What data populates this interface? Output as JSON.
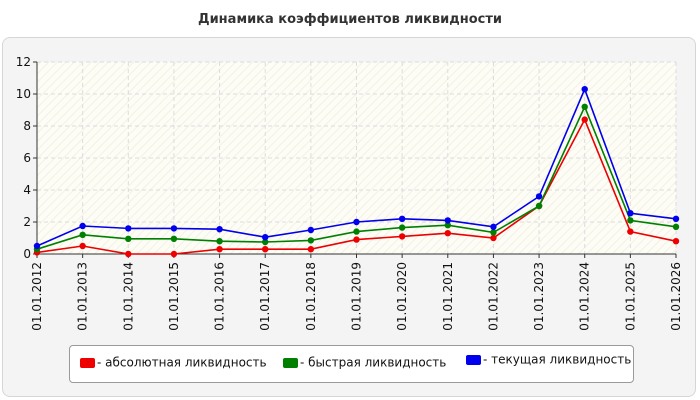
{
  "chart_data": {
    "type": "line",
    "title": "Динамика коэффициентов ликвидности",
    "xlabel": "",
    "ylabel": "",
    "x": [
      "01.01.2012",
      "01.01.2013",
      "01.01.2014",
      "01.01.2015",
      "01.01.2016",
      "01.01.2017",
      "01.01.2018",
      "01.01.2019",
      "01.01.2020",
      "01.01.2021",
      "01.01.2022",
      "01.01.2023",
      "01.01.2024",
      "01.01.2025",
      "01.01.2026"
    ],
    "ylim": [
      0,
      12
    ],
    "yticks": [
      0,
      2,
      4,
      6,
      8,
      10,
      12
    ],
    "grid": true,
    "legend_position": "bottom",
    "series": [
      {
        "name": "- абсолютная ликвидность",
        "color": "#ee0000",
        "values": [
          0.1,
          0.5,
          0.0,
          0.0,
          0.3,
          0.3,
          0.3,
          0.9,
          1.1,
          1.3,
          1.0,
          3.0,
          8.4,
          1.4,
          0.8
        ]
      },
      {
        "name": "- быстрая ликвидность",
        "color": "#008000",
        "values": [
          0.3,
          1.2,
          0.95,
          0.95,
          0.8,
          0.75,
          0.85,
          1.4,
          1.65,
          1.8,
          1.35,
          3.0,
          9.2,
          2.1,
          1.7
        ]
      },
      {
        "name": "- текущая ликвидность",
        "color": "#0000ee",
        "values": [
          0.5,
          1.75,
          1.6,
          1.6,
          1.55,
          1.05,
          1.5,
          2.0,
          2.2,
          2.1,
          1.7,
          3.6,
          10.3,
          2.55,
          2.2
        ]
      }
    ]
  }
}
